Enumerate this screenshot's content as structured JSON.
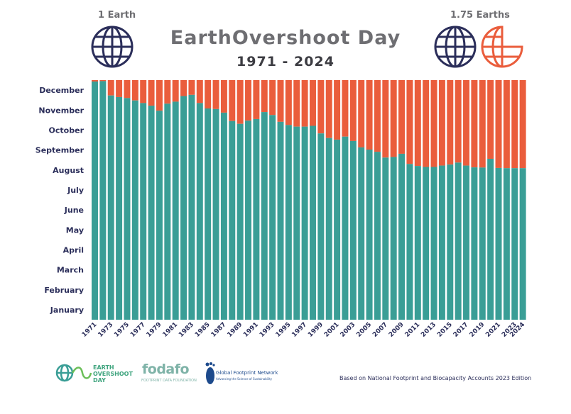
{
  "header": {
    "title": "EarthOvershoot Day",
    "subtitle": "1971 - 2024",
    "left_globe_label": "1 Earth",
    "right_globe_label": "1.75 Earths"
  },
  "colors": {
    "teal": "#3a9e96",
    "orange": "#ea5d3c",
    "navy": "#2b2e5a"
  },
  "chart_data": {
    "type": "bar",
    "title": "EarthOvershoot Day",
    "subtitle": "1971 - 2024",
    "y_axis_labels": [
      "December",
      "November",
      "October",
      "September",
      "August",
      "July",
      "June",
      "May",
      "April",
      "March",
      "February",
      "January"
    ],
    "ylim_month_index": [
      0,
      12
    ],
    "x_tick_labels": [
      "1971",
      "1973",
      "1975",
      "1977",
      "1979",
      "1981",
      "1983",
      "1985",
      "1987",
      "1989",
      "1991",
      "1993",
      "1995",
      "1997",
      "1999",
      "2001",
      "2003",
      "2005",
      "2007",
      "2009",
      "2011",
      "2013",
      "2015",
      "2017",
      "2019",
      "2021",
      "2023",
      "2024"
    ],
    "series": [
      {
        "name": "overshoot_day_month_index",
        "color": "#3a9e96"
      }
    ],
    "x": [
      1971,
      1972,
      1973,
      1974,
      1975,
      1976,
      1977,
      1978,
      1979,
      1980,
      1981,
      1982,
      1983,
      1984,
      1985,
      1986,
      1987,
      1988,
      1989,
      1990,
      1991,
      1992,
      1993,
      1994,
      1995,
      1996,
      1997,
      1998,
      1999,
      2000,
      2001,
      2002,
      2003,
      2004,
      2005,
      2006,
      2007,
      2008,
      2009,
      2010,
      2011,
      2012,
      2013,
      2014,
      2015,
      2016,
      2017,
      2018,
      2019,
      2020,
      2021,
      2022,
      2023,
      2024
    ],
    "values": [
      11.93,
      11.95,
      11.23,
      11.15,
      11.1,
      10.98,
      10.85,
      10.72,
      10.47,
      10.82,
      10.92,
      11.2,
      11.26,
      10.85,
      10.58,
      10.55,
      10.37,
      9.95,
      9.81,
      9.97,
      10.05,
      10.4,
      10.25,
      9.91,
      9.75,
      9.67,
      9.67,
      9.71,
      9.33,
      9.1,
      9.02,
      9.17,
      8.95,
      8.63,
      8.52,
      8.41,
      8.12,
      8.15,
      8.31,
      7.8,
      7.7,
      7.65,
      7.65,
      7.72,
      7.77,
      7.87,
      7.72,
      7.63,
      7.62,
      8.06,
      7.6,
      7.59,
      7.59,
      7.59
    ],
    "value_meaning": "fractional month index of overshoot day (0 = start of January, 12 = end of December); teal bar up to value, orange remainder to end of year"
  },
  "footer": {
    "eod_logo_line1": "EARTH",
    "eod_logo_line2": "OVERSHOOT",
    "eod_logo_line3": "DAY",
    "fodafo_logo": "fodafo",
    "fodafo_sub": "FOOTPRINT DATA FOUNDATION",
    "gfn_logo": "Global Footprint Network",
    "gfn_sub": "Advancing the Science of Sustainability",
    "source_note": "Based on National Footprint and Biocapacity Accounts 2023 Edition"
  }
}
